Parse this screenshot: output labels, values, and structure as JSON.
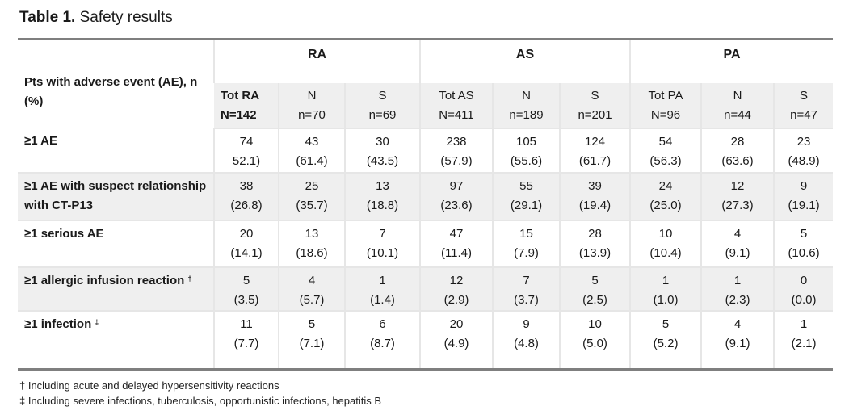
{
  "title": {
    "bold": "Table 1.",
    "text": "Safety results"
  },
  "row_header_label": "Pts with adverse event (AE), n (%)",
  "groups": [
    "RA",
    "AS",
    "PA"
  ],
  "columns": [
    {
      "name": "Tot RA",
      "n": "N=142"
    },
    {
      "name": "N",
      "n": "n=70"
    },
    {
      "name": "S",
      "n": "n=69"
    },
    {
      "name": "Tot AS",
      "n": "N=411"
    },
    {
      "name": "N",
      "n": "n=189"
    },
    {
      "name": "S",
      "n": "n=201"
    },
    {
      "name": "Tot PA",
      "n": "N=96"
    },
    {
      "name": "N",
      "n": "n=44"
    },
    {
      "name": "S",
      "n": "n=47"
    }
  ],
  "rows": [
    {
      "label": "≥1 AE",
      "mark": "",
      "cells": [
        [
          "74",
          "52.1)"
        ],
        [
          "43",
          "(61.4)"
        ],
        [
          "30",
          "(43.5)"
        ],
        [
          "238",
          "(57.9)"
        ],
        [
          "105",
          "(55.6)"
        ],
        [
          "124",
          "(61.7)"
        ],
        [
          "54",
          "(56.3)"
        ],
        [
          "28",
          "(63.6)"
        ],
        [
          "23",
          "(48.9)"
        ]
      ]
    },
    {
      "label": "≥1 AE with suspect relationship with CT-P13",
      "mark": "",
      "cells": [
        [
          "38",
          "(26.8)"
        ],
        [
          "25",
          "(35.7)"
        ],
        [
          "13",
          "(18.8)"
        ],
        [
          "97",
          "(23.6)"
        ],
        [
          "55",
          "(29.1)"
        ],
        [
          "39",
          "(19.4)"
        ],
        [
          "24",
          "(25.0)"
        ],
        [
          "12",
          "(27.3)"
        ],
        [
          "9",
          "(19.1)"
        ]
      ]
    },
    {
      "label": "≥1 serious AE",
      "mark": "",
      "cells": [
        [
          "20",
          "(14.1)"
        ],
        [
          "13",
          "(18.6)"
        ],
        [
          "7",
          "(10.1)"
        ],
        [
          "47",
          "(11.4)"
        ],
        [
          "15",
          "(7.9)"
        ],
        [
          "28",
          "(13.9)"
        ],
        [
          "10",
          "(10.4)"
        ],
        [
          "4",
          "(9.1)"
        ],
        [
          "5",
          "(10.6)"
        ]
      ]
    },
    {
      "label": "≥1 allergic infusion reaction",
      "mark": "†",
      "cells": [
        [
          "5",
          "(3.5)"
        ],
        [
          "4",
          "(5.7)"
        ],
        [
          "1",
          "(1.4)"
        ],
        [
          "12",
          "(2.9)"
        ],
        [
          "7",
          "(3.7)"
        ],
        [
          "5",
          "(2.5)"
        ],
        [
          "1",
          "(1.0)"
        ],
        [
          "1",
          "(2.3)"
        ],
        [
          "0",
          "(0.0)"
        ]
      ]
    },
    {
      "label": "≥1 infection",
      "mark": "‡",
      "cells": [
        [
          "11",
          "(7.7)"
        ],
        [
          "5",
          "(7.1)"
        ],
        [
          "6",
          "(8.7)"
        ],
        [
          "20",
          "(4.9)"
        ],
        [
          "9",
          "(4.8)"
        ],
        [
          "10",
          "(5.0)"
        ],
        [
          "5",
          "(5.2)"
        ],
        [
          "4",
          "(9.1)"
        ],
        [
          "1",
          "(2.1)"
        ]
      ]
    }
  ],
  "footnotes": [
    "† Including  acute and delayed hypersensitivity  reactions",
    "‡ Including  severe infections, tuberculosis,  opportunistic infections, hepatitis B"
  ]
}
